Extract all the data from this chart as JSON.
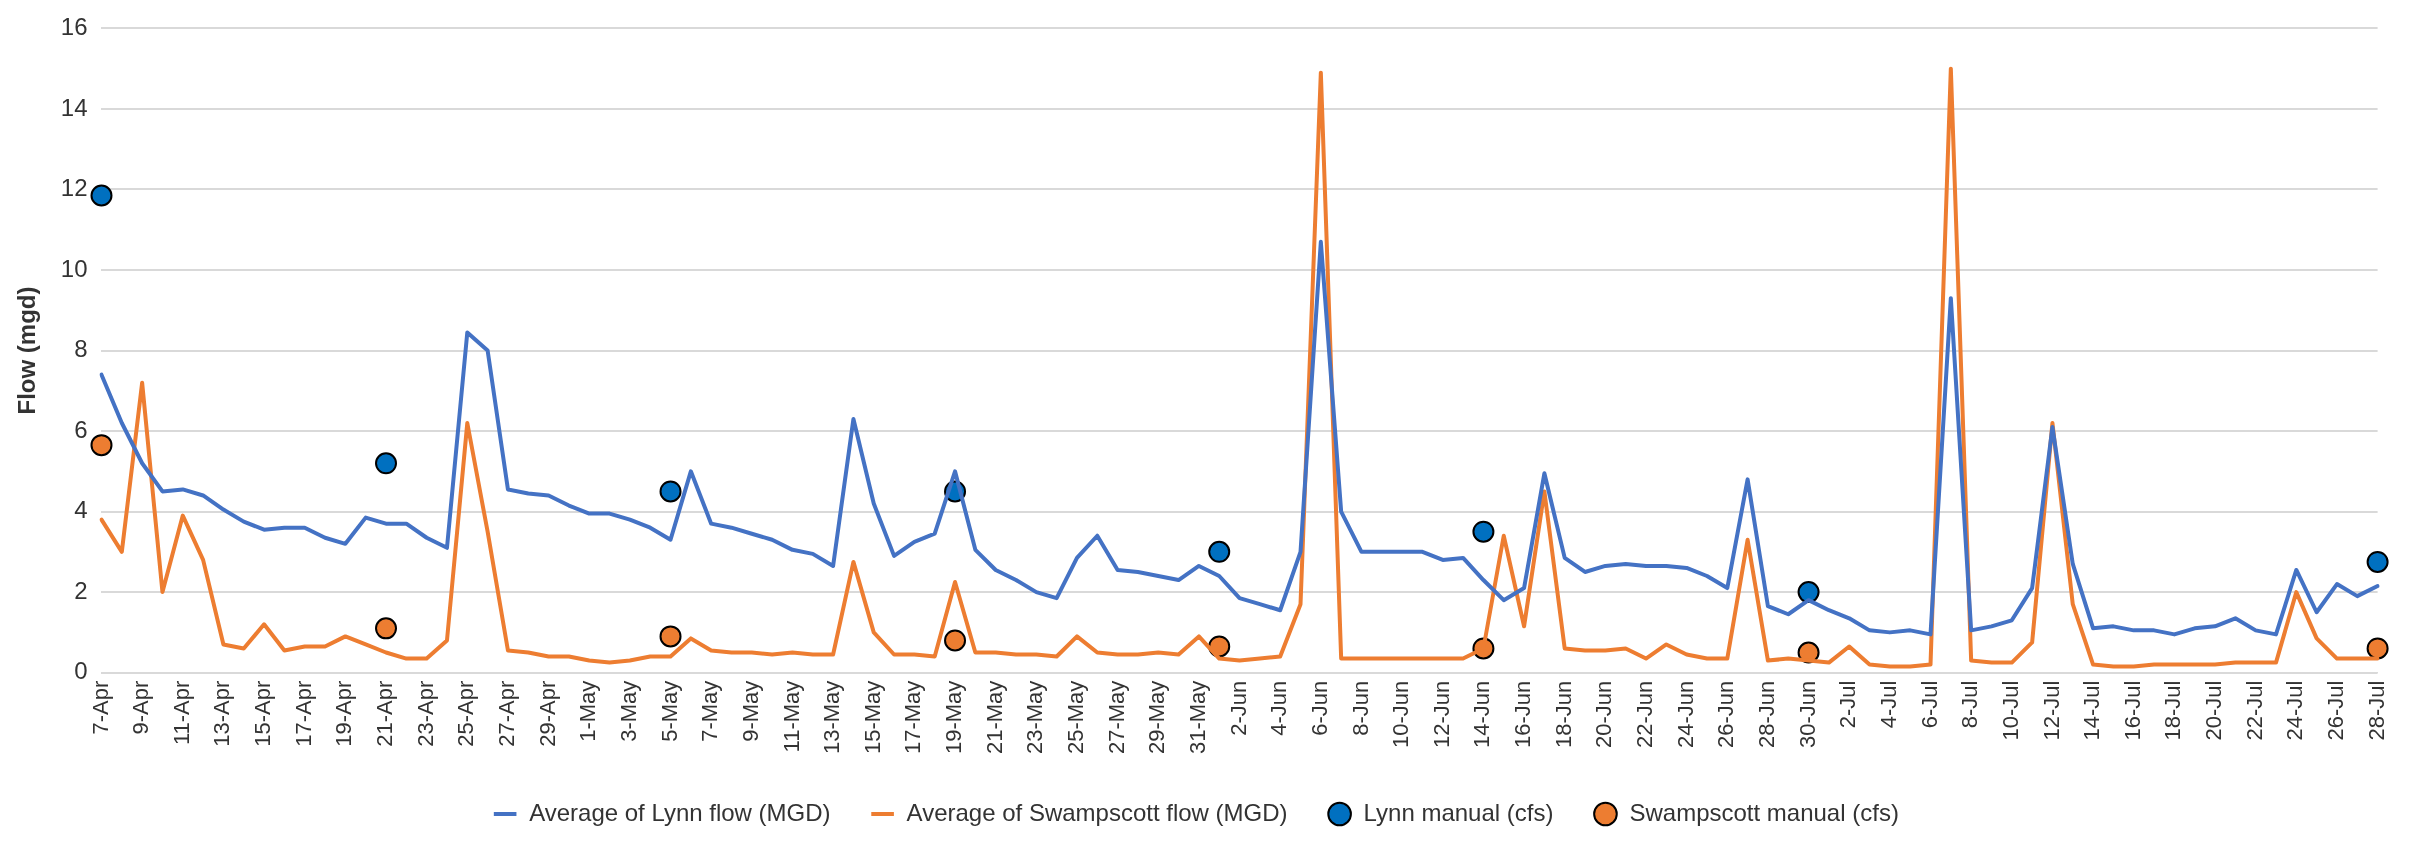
{
  "chart_data": {
    "type": "line",
    "ylabel": "Flow (mgd)",
    "categories": [
      "7-Apr",
      null,
      "9-Apr",
      null,
      "11-Apr",
      null,
      "13-Apr",
      null,
      "15-Apr",
      null,
      "17-Apr",
      null,
      "19-Apr",
      null,
      "21-Apr",
      null,
      "23-Apr",
      null,
      "25-Apr",
      null,
      "27-Apr",
      null,
      "29-Apr",
      null,
      "1-May",
      null,
      "3-May",
      null,
      "5-May",
      null,
      "7-May",
      null,
      "9-May",
      null,
      "11-May",
      null,
      "13-May",
      null,
      "15-May",
      null,
      "17-May",
      null,
      "19-May",
      null,
      "21-May",
      null,
      "23-May",
      null,
      "25-May",
      null,
      "27-May",
      null,
      "29-May",
      null,
      "31-May",
      null,
      "2-Jun",
      null,
      "4-Jun",
      null,
      "6-Jun",
      null,
      "8-Jun",
      null,
      "10-Jun",
      null,
      "12-Jun",
      null,
      "14-Jun",
      null,
      "16-Jun",
      null,
      "18-Jun",
      null,
      "20-Jun",
      null,
      "22-Jun",
      null,
      "24-Jun",
      null,
      "26-Jun",
      null,
      "28-Jun",
      null,
      "30-Jun",
      null,
      "2-Jul",
      null,
      "4-Jul",
      null,
      "6-Jul",
      null,
      "8-Jul",
      null,
      "10-Jul",
      null,
      "12-Jul",
      null,
      "14-Jul",
      null,
      "16-Jul",
      null,
      "18-Jul",
      null,
      "20-Jul",
      null,
      "22-Jul",
      null,
      "24-Jul",
      null,
      "26-Jul",
      null,
      "28-Jul"
    ],
    "series": [
      {
        "name": "Average of Lynn flow (MGD)",
        "type": "line",
        "color": "#4472c4",
        "marker": "none",
        "line_style": "solid",
        "values": [
          7.4,
          6.2,
          5.2,
          4.5,
          4.55,
          4.4,
          4.05,
          3.75,
          3.55,
          3.6,
          3.6,
          3.35,
          3.2,
          3.85,
          3.7,
          3.7,
          3.35,
          3.1,
          8.45,
          8.0,
          4.55,
          4.45,
          4.4,
          4.15,
          3.95,
          3.95,
          3.8,
          3.6,
          3.3,
          5.0,
          3.7,
          3.6,
          3.45,
          3.3,
          3.05,
          2.95,
          2.65,
          6.3,
          4.2,
          2.9,
          3.25,
          3.45,
          5.0,
          3.05,
          2.55,
          2.3,
          2.0,
          1.85,
          2.85,
          3.4,
          2.55,
          2.5,
          2.4,
          2.3,
          2.65,
          2.4,
          1.85,
          1.7,
          1.55,
          3.0,
          10.7,
          4.0,
          3.0,
          3.0,
          3.0,
          3.0,
          2.8,
          2.85,
          2.3,
          1.8,
          2.1,
          4.95,
          2.85,
          2.5,
          2.65,
          2.7,
          2.65,
          2.65,
          2.6,
          2.4,
          2.1,
          4.8,
          1.65,
          1.45,
          1.8,
          1.55,
          1.35,
          1.05,
          1.0,
          1.05,
          0.95,
          9.3,
          1.05,
          1.15,
          1.3,
          2.1,
          6.1,
          2.7,
          1.1,
          1.15,
          1.05,
          1.05,
          0.95,
          1.1,
          1.15,
          1.35,
          1.05,
          0.95,
          2.55,
          1.5,
          2.2,
          1.9,
          2.15
        ]
      },
      {
        "name": "Average of Swampscott flow (MGD)",
        "type": "line",
        "color": "#ed7d31",
        "marker": "none",
        "line_style": "solid",
        "values": [
          3.8,
          3.0,
          7.2,
          2.0,
          3.9,
          2.8,
          0.7,
          0.6,
          1.2,
          0.55,
          0.65,
          0.65,
          0.9,
          0.7,
          0.5,
          0.35,
          0.35,
          0.8,
          6.2,
          3.5,
          0.55,
          0.5,
          0.4,
          0.4,
          0.3,
          0.25,
          0.3,
          0.4,
          0.4,
          0.85,
          0.55,
          0.5,
          0.5,
          0.45,
          0.5,
          0.45,
          0.45,
          2.75,
          1.0,
          0.45,
          0.45,
          0.4,
          2.25,
          0.5,
          0.5,
          0.45,
          0.45,
          0.4,
          0.9,
          0.5,
          0.45,
          0.45,
          0.5,
          0.45,
          0.9,
          0.35,
          0.3,
          0.35,
          0.4,
          1.7,
          14.9,
          0.35,
          0.35,
          0.35,
          0.35,
          0.35,
          0.35,
          0.35,
          0.6,
          3.4,
          1.15,
          4.5,
          0.6,
          0.55,
          0.55,
          0.6,
          0.35,
          0.7,
          0.45,
          0.35,
          0.35,
          3.3,
          0.3,
          0.35,
          0.3,
          0.25,
          0.65,
          0.2,
          0.15,
          0.15,
          0.2,
          15.0,
          0.3,
          0.25,
          0.25,
          0.75,
          6.2,
          1.7,
          0.2,
          0.15,
          0.15,
          0.2,
          0.2,
          0.2,
          0.2,
          0.25,
          0.25,
          0.25,
          2.0,
          0.85,
          0.35,
          0.35,
          0.35
        ]
      },
      {
        "name": "Lynn manual (cfs)",
        "type": "scatter",
        "color": "#0070c0",
        "marker": "circle",
        "values": [
          11.85,
          null,
          null,
          null,
          null,
          null,
          null,
          null,
          null,
          null,
          null,
          null,
          null,
          null,
          5.2,
          null,
          null,
          null,
          null,
          null,
          null,
          null,
          null,
          null,
          null,
          null,
          null,
          null,
          4.5,
          null,
          null,
          null,
          null,
          null,
          null,
          null,
          null,
          null,
          null,
          null,
          null,
          null,
          4.5,
          null,
          null,
          null,
          null,
          null,
          null,
          null,
          null,
          null,
          null,
          null,
          null,
          3.0,
          null,
          null,
          null,
          null,
          null,
          null,
          null,
          null,
          null,
          null,
          null,
          null,
          3.5,
          null,
          null,
          null,
          null,
          null,
          null,
          null,
          null,
          null,
          null,
          null,
          null,
          null,
          null,
          null,
          2.0,
          null,
          null,
          null,
          null,
          null,
          null,
          null,
          null,
          null,
          null,
          null,
          null,
          null,
          null,
          null,
          null,
          null,
          null,
          null,
          null,
          null,
          null,
          null,
          null,
          null,
          null,
          null,
          2.75
        ]
      },
      {
        "name": "Swampscott manual (cfs)",
        "type": "scatter",
        "color": "#ed7d31",
        "marker": "circle",
        "values": [
          5.65,
          null,
          null,
          null,
          null,
          null,
          null,
          null,
          null,
          null,
          null,
          null,
          null,
          null,
          1.1,
          null,
          null,
          null,
          null,
          null,
          null,
          null,
          null,
          null,
          null,
          null,
          null,
          null,
          0.9,
          null,
          null,
          null,
          null,
          null,
          null,
          null,
          null,
          null,
          null,
          null,
          null,
          null,
          0.8,
          null,
          null,
          null,
          null,
          null,
          null,
          null,
          null,
          null,
          null,
          null,
          null,
          0.65,
          null,
          null,
          null,
          null,
          null,
          null,
          null,
          null,
          null,
          null,
          null,
          null,
          0.6,
          null,
          null,
          null,
          null,
          null,
          null,
          null,
          null,
          null,
          null,
          null,
          null,
          null,
          null,
          null,
          0.5,
          null,
          null,
          null,
          null,
          null,
          null,
          null,
          null,
          null,
          null,
          null,
          null,
          null,
          null,
          null,
          null,
          null,
          null,
          null,
          null,
          null,
          null,
          null,
          null,
          null,
          null,
          null,
          0.6
        ]
      }
    ],
    "ylim": [
      0,
      16
    ],
    "yticks": [
      0,
      2,
      4,
      6,
      8,
      10,
      12,
      14,
      16
    ],
    "grid": "y",
    "legend": "bottom"
  }
}
